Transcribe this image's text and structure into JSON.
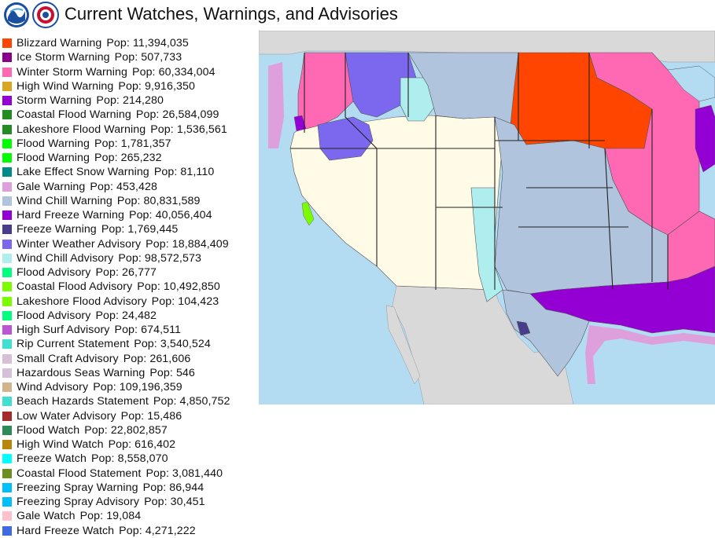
{
  "header": {
    "title": "Current Watches, Warnings, and Advisories",
    "logos": [
      "noaa-logo",
      "nws-logo"
    ]
  },
  "legend": {
    "pop_label": "Pop:",
    "items": [
      {
        "name": "Blizzard Warning",
        "pop": "11,394,035",
        "color": "#ff4500"
      },
      {
        "name": "Ice Storm Warning",
        "pop": "507,733",
        "color": "#8b008b"
      },
      {
        "name": "Winter Storm Warning",
        "pop": "60,334,004",
        "color": "#ff69b4"
      },
      {
        "name": "High Wind Warning",
        "pop": "9,916,350",
        "color": "#daa520"
      },
      {
        "name": "Storm Warning",
        "pop": "214,280",
        "color": "#9400d3"
      },
      {
        "name": "Coastal Flood Warning",
        "pop": "26,584,099",
        "color": "#228b22"
      },
      {
        "name": "Lakeshore Flood Warning",
        "pop": "1,536,561",
        "color": "#228b22"
      },
      {
        "name": "Flood Warning",
        "pop": "1,781,357",
        "color": "#00ff00"
      },
      {
        "name": "Flood Warning",
        "pop": "265,232",
        "color": "#00ff00"
      },
      {
        "name": "Lake Effect Snow Warning",
        "pop": "81,110",
        "color": "#008b8b"
      },
      {
        "name": "Gale Warning",
        "pop": "453,428",
        "color": "#dda0dd"
      },
      {
        "name": "Wind Chill Warning",
        "pop": "80,831,589",
        "color": "#b0c4de"
      },
      {
        "name": "Hard Freeze Warning",
        "pop": "40,056,404",
        "color": "#9400d3"
      },
      {
        "name": "Freeze Warning",
        "pop": "1,769,445",
        "color": "#483d8b"
      },
      {
        "name": "Winter Weather Advisory",
        "pop": "18,884,409",
        "color": "#7b68ee"
      },
      {
        "name": "Wind Chill Advisory",
        "pop": "98,572,573",
        "color": "#afeeee"
      },
      {
        "name": "Flood Advisory",
        "pop": "26,777",
        "color": "#00ff7f"
      },
      {
        "name": "Coastal Flood Advisory",
        "pop": "10,492,850",
        "color": "#7cfc00"
      },
      {
        "name": "Lakeshore Flood Advisory",
        "pop": "104,423",
        "color": "#7cfc00"
      },
      {
        "name": "Flood Advisory",
        "pop": "24,482",
        "color": "#00ff7f"
      },
      {
        "name": "High Surf Advisory",
        "pop": "674,511",
        "color": "#ba55d3"
      },
      {
        "name": "Rip Current Statement",
        "pop": "3,540,524",
        "color": "#40e0d0"
      },
      {
        "name": "Small Craft Advisory",
        "pop": "261,606",
        "color": "#d8bfd8"
      },
      {
        "name": "Hazardous Seas Warning",
        "pop": "546",
        "color": "#d8bfd8"
      },
      {
        "name": "Wind Advisory",
        "pop": "109,196,359",
        "color": "#d2b48c"
      },
      {
        "name": "Beach Hazards Statement",
        "pop": "4,850,752",
        "color": "#40e0d0"
      },
      {
        "name": "Low Water Advisory",
        "pop": "15,486",
        "color": "#a52a2a"
      },
      {
        "name": "Flood Watch",
        "pop": "22,802,857",
        "color": "#2e8b57"
      },
      {
        "name": "High Wind Watch",
        "pop": "616,402",
        "color": "#b8860b"
      },
      {
        "name": "Freeze Watch",
        "pop": "8,558,070",
        "color": "#00ffff"
      },
      {
        "name": "Coastal Flood Statement",
        "pop": "3,081,440",
        "color": "#6b8e23"
      },
      {
        "name": "Freezing Spray Warning",
        "pop": "86,944",
        "color": "#00bfff"
      },
      {
        "name": "Freezing Spray Advisory",
        "pop": "30,451",
        "color": "#00bfff"
      },
      {
        "name": "Gale Watch",
        "pop": "19,084",
        "color": "#ffc0cb"
      },
      {
        "name": "Hard Freeze Watch",
        "pop": "4,271,222",
        "color": "#4169e1"
      }
    ]
  },
  "map": {
    "colors": {
      "ocean": "#b3dcf3",
      "land_outside": "#d9d9d9",
      "no_alert": "#fffbe6",
      "wind_chill_warning": "#b0c4de",
      "wind_chill_advisory": "#afeeee",
      "winter_storm_warning": "#ff69b4",
      "blizzard_warning": "#ff4500",
      "winter_weather_advisory": "#7b68ee",
      "hard_freeze_warning": "#9400d3",
      "gale_warning": "#dda0dd",
      "coastal_flood_advisory": "#7cfc00",
      "storm_warning": "#9400d3",
      "freeze_warning": "#483d8b"
    }
  }
}
